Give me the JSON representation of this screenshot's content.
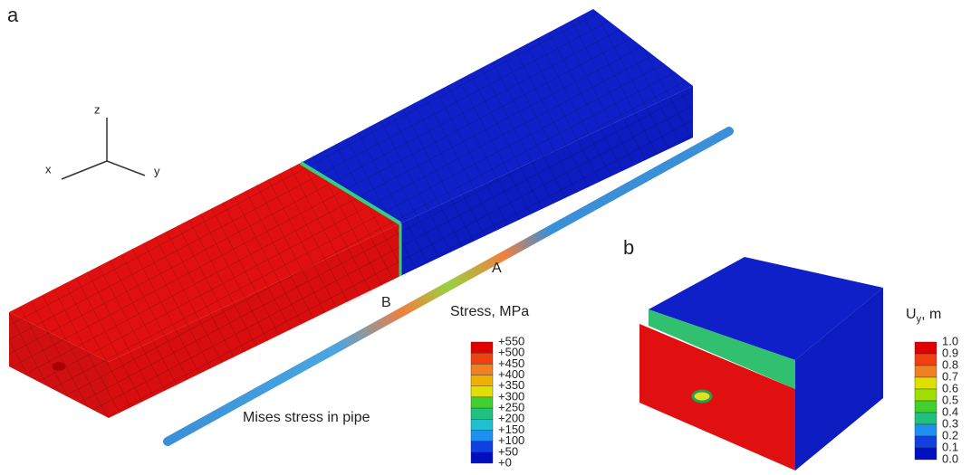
{
  "panel_a": {
    "label": "a",
    "axes": {
      "z": "z",
      "x": "x",
      "y": "y"
    },
    "points": {
      "a": "A",
      "b": "B"
    },
    "caption": "Mises stress in pipe",
    "legend": {
      "title": "Stress, MPa",
      "labels": [
        "+550",
        "+500",
        "+450",
        "+400",
        "+350",
        "+300",
        "+250",
        "+200",
        "+150",
        "+100",
        "+50",
        "+0"
      ]
    }
  },
  "panel_b": {
    "label": "b",
    "legend": {
      "title": {
        "main": "U",
        "subscript": "y",
        "suffix": ", m"
      },
      "labels": [
        "1.0",
        "0.9",
        "0.8",
        "0.7",
        "0.6",
        "0.5",
        "0.4",
        "0.3",
        "0.2",
        "0.1",
        "0.0"
      ]
    }
  }
}
